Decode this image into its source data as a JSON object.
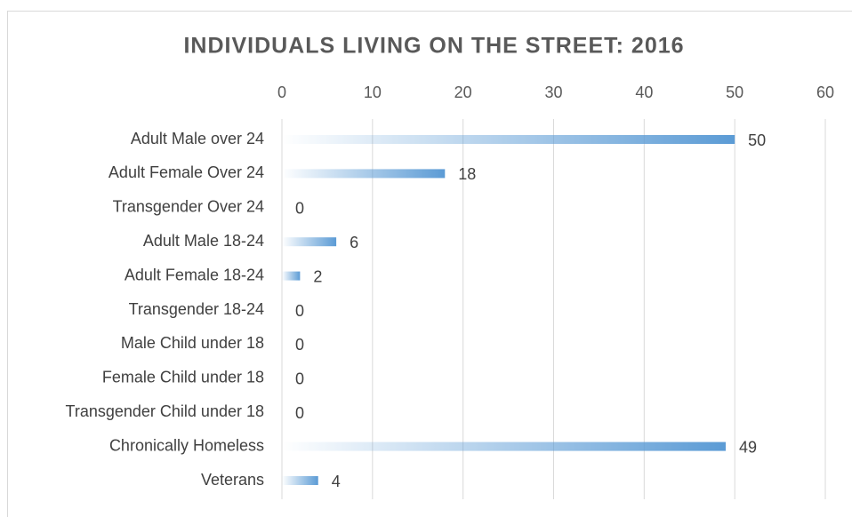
{
  "chart_data": {
    "type": "bar",
    "orientation": "horizontal",
    "title": "INDIVIDUALS LIVING ON THE STREET: 2016",
    "categories": [
      "Adult Male over 24",
      "Adult Female Over 24",
      "Transgender Over 24",
      "Adult Male 18-24",
      "Adult Female 18-24",
      "Transgender 18-24",
      "Male Child under 18",
      "Female Child under 18",
      "Transgender Child under 18",
      "Chronically Homeless",
      "Veterans"
    ],
    "values": [
      50,
      18,
      0,
      6,
      2,
      0,
      0,
      0,
      0,
      49,
      4
    ],
    "color": "#5b9bd5",
    "gradient": true,
    "xlim": [
      0,
      60
    ],
    "xticks": [
      0,
      10,
      20,
      30,
      40,
      50,
      60
    ],
    "grid": true,
    "data_labels": true
  }
}
